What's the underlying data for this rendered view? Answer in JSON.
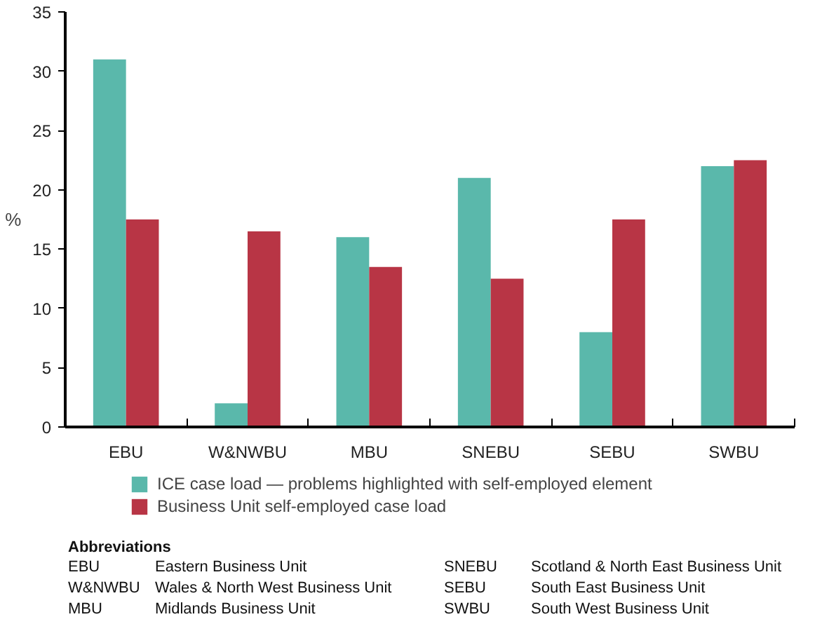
{
  "chart_data": {
    "type": "bar",
    "ylabel": "%",
    "categories": [
      "EBU",
      "W&NWBU",
      "MBU",
      "SNEBU",
      "SEBU",
      "SWBU"
    ],
    "series": [
      {
        "name": "ICE case load — problems highlighted with self-employed element",
        "color": "#5ab8ab",
        "values": [
          31,
          2,
          16,
          21,
          8,
          22
        ]
      },
      {
        "name": "Business Unit self-employed case load",
        "color": "#b83545",
        "values": [
          17.5,
          16.5,
          13.5,
          12.5,
          17.5,
          22.5
        ]
      }
    ],
    "ylim": [
      0,
      35
    ],
    "yticks": [
      0,
      5,
      10,
      15,
      20,
      25,
      30,
      35
    ],
    "grid": false,
    "legend": "bottom",
    "annotations": [
      "Abbreviations",
      "EBU",
      "Eastern Business Unit",
      "W&NWBU",
      "Wales & North West Business Unit",
      "MBU",
      "Midlands Business Unit",
      "SNEBU",
      "Scotland & North East Business Unit",
      "SEBU",
      "South East Business Unit",
      "SWBU",
      "South West Business Unit"
    ]
  }
}
